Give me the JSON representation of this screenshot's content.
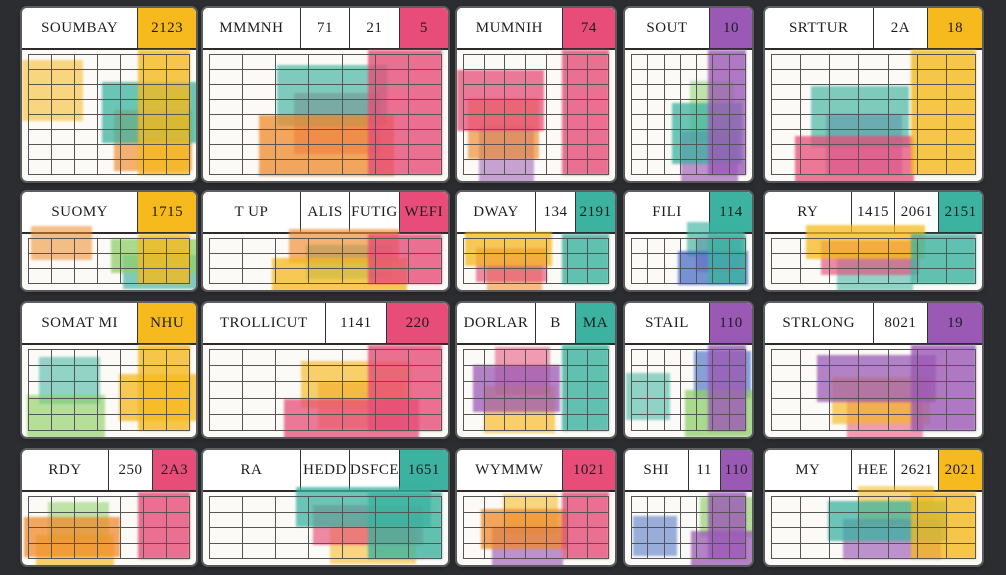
{
  "colors": {
    "background": "#2b2d31",
    "yellow": "#f6b91e",
    "orange": "#f08a2a",
    "pink": "#e74d78",
    "magenta": "#c4469a",
    "purple": "#9b59b6",
    "teal": "#3bb3a0",
    "blue": "#4a6fc7",
    "green": "#8fcf6a"
  },
  "calendars": [
    {
      "headers": [
        "SOUMBAY",
        "2123"
      ],
      "accent": "#f6b91e"
    },
    {
      "headers": [
        "MMMNH",
        "71",
        "21",
        "5"
      ],
      "accent": "#e74d78"
    },
    {
      "headers": [
        "MUMNIH",
        "74"
      ],
      "accent": "#e74d78"
    },
    {
      "headers": [
        "SOUT",
        "10"
      ],
      "accent": "#9b59b6"
    },
    {
      "headers": [
        "SRTTUR",
        "2A",
        "18"
      ],
      "accent": "#f6b91e"
    },
    {
      "headers": [
        "SUOMY",
        "1715"
      ],
      "accent": "#f6b91e"
    },
    {
      "headers": [
        "T UP",
        "ALIS",
        "FUTIG",
        "WEFI"
      ],
      "accent": "#e74d78"
    },
    {
      "headers": [
        "DWAY",
        "134",
        "2191"
      ],
      "accent": "#3bb3a0"
    },
    {
      "headers": [
        "FILI",
        "114"
      ],
      "accent": "#3bb3a0"
    },
    {
      "headers": [
        "RY",
        "1415",
        "2061",
        "2151"
      ],
      "accent": "#3bb3a0"
    },
    {
      "headers": [
        "SOMAT MI",
        "NHU"
      ],
      "accent": "#f6b91e"
    },
    {
      "headers": [
        "TROLLICUT",
        "1141",
        "220"
      ],
      "accent": "#e74d78"
    },
    {
      "headers": [
        "DORLAR",
        "B",
        "MA"
      ],
      "accent": "#3bb3a0"
    },
    {
      "headers": [
        "STAIL",
        "110"
      ],
      "accent": "#9b59b6"
    },
    {
      "headers": [
        "STRLONG",
        "8021",
        "19"
      ],
      "accent": "#9b59b6"
    },
    {
      "headers": [
        "RDY",
        "250",
        "2A3"
      ],
      "accent": "#e74d78"
    },
    {
      "headers": [
        "RA",
        "HEDD",
        "DSFCE",
        "1651"
      ],
      "accent": "#3bb3a0"
    },
    {
      "headers": [
        "WYMMW",
        "1021"
      ],
      "accent": "#e74d78"
    },
    {
      "headers": [
        "SHI",
        "11",
        "110"
      ],
      "accent": "#9b59b6"
    },
    {
      "headers": [
        "MY",
        "HEE",
        "2621",
        "2021"
      ],
      "accent": "#f6b91e"
    }
  ]
}
